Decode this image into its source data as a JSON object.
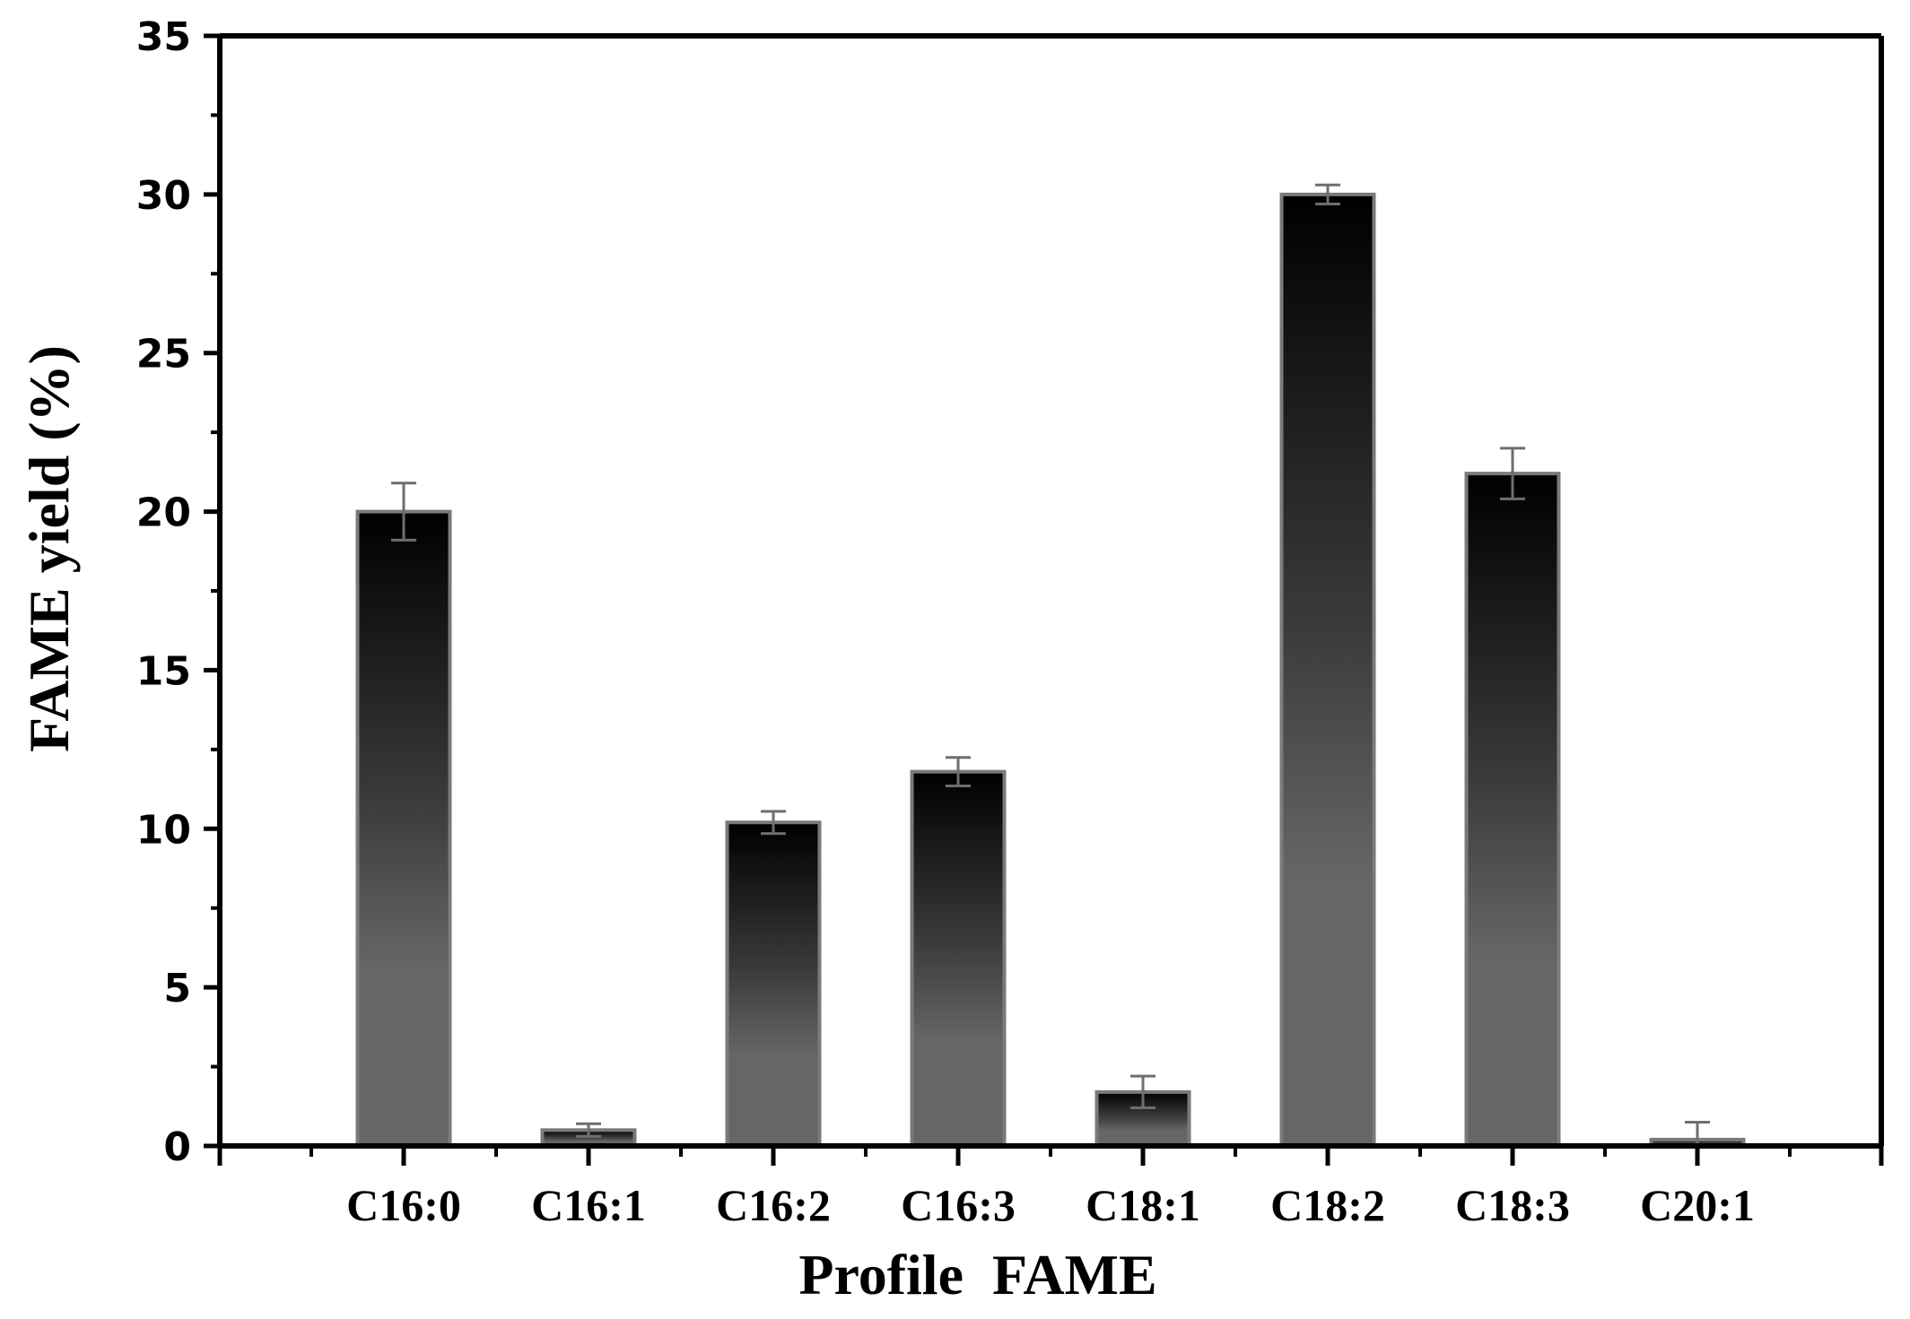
{
  "chart_data": {
    "type": "bar",
    "title": "",
    "xlabel": "Profile  FAME",
    "ylabel": "FAME yield (%)",
    "categories": [
      "C16:0",
      "C16:1",
      "C16:2",
      "C16:3",
      "C18:1",
      "C18:2",
      "C18:3",
      "C20:1"
    ],
    "values": [
      20.0,
      0.5,
      10.2,
      11.8,
      1.7,
      30.0,
      21.2,
      0.2
    ],
    "errors": [
      0.9,
      0.2,
      0.35,
      0.45,
      0.5,
      0.3,
      0.8,
      0.55
    ],
    "ylim": [
      0,
      35
    ],
    "yticks": [
      "0",
      "5",
      "10",
      "15",
      "20",
      "25",
      "30",
      "35"
    ],
    "grid": false,
    "legend": "none",
    "colors": {
      "bar_top": "#000000",
      "bar_bottom": "#666666",
      "bar_border": "#7a7a7a",
      "error_bar": "#6e6e6e",
      "axis": "#000000"
    }
  }
}
